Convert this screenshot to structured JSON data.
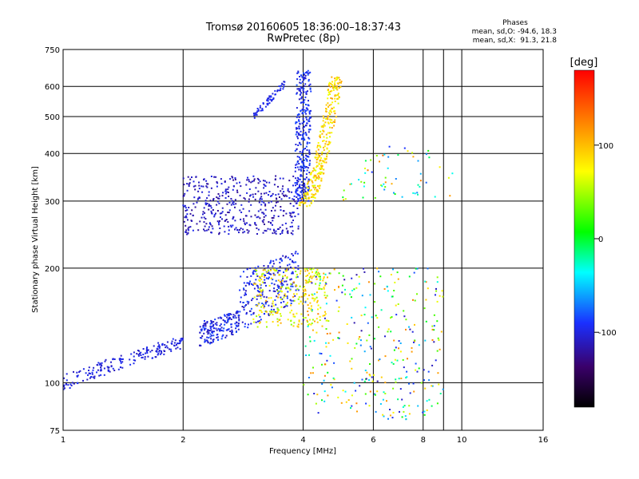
{
  "chart_data": {
    "type": "scatter",
    "title": "Tromsø 20160605 18:36:00–18:37:43",
    "subtitle": "RwPretec (8p)",
    "xlabel": "Frequency [MHz]",
    "ylabel": "Stationary phase Virtual Height [km]",
    "x_scale": "log",
    "y_scale": "log",
    "xlim": [
      1,
      16
    ],
    "ylim": [
      75,
      750
    ],
    "x_ticks": [
      1,
      2,
      4,
      6,
      8,
      10,
      16
    ],
    "y_ticks": [
      75,
      100,
      200,
      300,
      400,
      500,
      600,
      750
    ],
    "x_gridlines": [
      2,
      4,
      6,
      8,
      9,
      10
    ],
    "y_gridlines": [
      100,
      200,
      300,
      400,
      500,
      600
    ],
    "grid": true,
    "stats": {
      "heading": "Phases",
      "line1": "mean, sd,O: -94.6, 18.3",
      "line2": "mean, sd,X:  91.3, 21.8"
    },
    "colorbar": {
      "label": "[deg]",
      "range": [
        -180,
        180
      ],
      "ticks": [
        100,
        0,
        -100
      ],
      "placement": "right"
    },
    "point_groups": [
      {
        "id": "low-o-trace",
        "f": [
          1.0,
          2.0
        ],
        "h": [
          100,
          128
        ],
        "phase": [
          -112,
          -90
        ],
        "n": 190
      },
      {
        "id": "low-o-cusp",
        "f": [
          2.2,
          3.9
        ],
        "h": [
          125,
          205
        ],
        "phase": [
          -115,
          -80
        ],
        "n": 420
      },
      {
        "id": "low-x-cusp",
        "f": [
          3.0,
          4.6
        ],
        "h": [
          140,
          200
        ],
        "phase": [
          40,
          110
        ],
        "n": 260
      },
      {
        "id": "low-scatter",
        "f": [
          4.0,
          9.0
        ],
        "h": [
          80,
          200
        ],
        "phase": [
          -120,
          130
        ],
        "n": 330
      },
      {
        "id": "f-o-base",
        "f": [
          2.0,
          3.9
        ],
        "h": [
          245,
          350
        ],
        "phase": [
          -125,
          -95
        ],
        "n": 430
      },
      {
        "id": "f-o-riser",
        "f": [
          3.8,
          4.15
        ],
        "h": [
          300,
          660
        ],
        "phase": [
          -110,
          -80
        ],
        "n": 320
      },
      {
        "id": "f-x-riser",
        "f": [
          3.9,
          4.95
        ],
        "h": [
          290,
          640
        ],
        "phase": [
          60,
          115
        ],
        "n": 300
      },
      {
        "id": "f-x-spread",
        "f": [
          5.0,
          9.5
        ],
        "h": [
          300,
          420
        ],
        "phase": [
          -100,
          150
        ],
        "n": 60
      },
      {
        "id": "upper-o-branch",
        "f": [
          3.0,
          3.6
        ],
        "h": [
          480,
          600
        ],
        "phase": [
          -105,
          -90
        ],
        "n": 60
      }
    ]
  }
}
